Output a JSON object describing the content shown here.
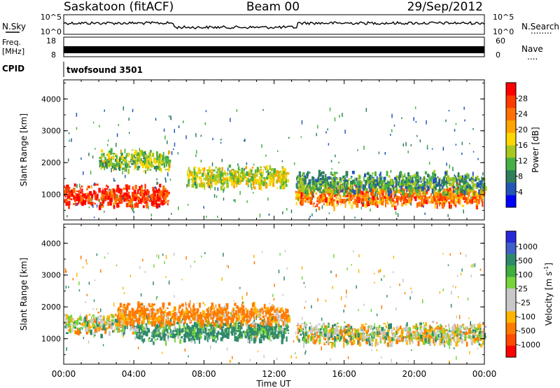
{
  "header": {
    "station": "Saskatoon (fitACF)",
    "beam": "Beam 00",
    "date": "29/Sep/2012"
  },
  "noise_panel": {
    "left_label": "N.Sky",
    "right_label": "N.Search",
    "left_ticks": [
      "10^5",
      "10^0"
    ],
    "right_ticks": [
      "10^5",
      "10^0"
    ],
    "right_legend_dots": "........"
  },
  "freq_panel": {
    "left_label_line1": "Freq.",
    "left_label_line2": "[MHz]",
    "left_ticks": [
      "18",
      "8"
    ],
    "right_label": "Nave",
    "right_ticks": [
      "60",
      "0"
    ],
    "right_legend_dots": "...."
  },
  "cpid_panel": {
    "label": "CPID",
    "program": "twofsound 3501"
  },
  "power_colorbar": {
    "title": "Power [dB]",
    "ticks": [
      "28",
      "24",
      "20",
      "16",
      "12",
      "8",
      "4"
    ],
    "colors": [
      "#0000ff",
      "#2456b8",
      "#2f7f5a",
      "#46b043",
      "#a8c81e",
      "#ffd700",
      "#ffa500",
      "#ff7000",
      "#ff3a00",
      "#ff0000"
    ]
  },
  "velocity_colorbar": {
    "title": "Velocity [m s",
    "title_sup": "-1",
    "title_end": "]",
    "ticks": [
      "1000",
      "500",
      "100",
      "25",
      "-25",
      "-100",
      "-500",
      "-1000"
    ],
    "colors": [
      "#2828d8",
      "#3f60c8",
      "#2f8a6a",
      "#3fae3f",
      "#77d43a",
      "#c8c8c8",
      "#c8c8c8",
      "#ffb400",
      "#ff7a00",
      "#ff4a00",
      "#ff0000"
    ]
  },
  "axes": {
    "ylabel": "Slant Range [km]",
    "xlabel": "Time UT",
    "xticks": [
      "00:00",
      "04:00",
      "08:00",
      "12:00",
      "16:00",
      "20:00",
      "00:00"
    ],
    "yticks": [
      "1000",
      "2000",
      "3000",
      "4000"
    ]
  },
  "chart_data": [
    {
      "type": "heatmap",
      "panel": "power",
      "x": [
        "00:00",
        "04:00",
        "08:00",
        "12:00",
        "16:00",
        "20:00",
        "00:00"
      ],
      "y_ticks": [
        1000,
        2000,
        3000,
        4000
      ],
      "ylim": [
        200,
        4600
      ],
      "zlim": [
        0,
        32
      ],
      "xlabel": "Time UT",
      "ylabel": "Slant Range [km]",
      "colorbar": "Power [dB]",
      "features": [
        {
          "t_start": 0.0,
          "t_end": 6.0,
          "range_center": 1000,
          "value": 28
        },
        {
          "t_start": 2.0,
          "t_end": 6.0,
          "range_center": 2100,
          "value": 14
        },
        {
          "t_start": 7.0,
          "t_end": 12.8,
          "range_center": 1600,
          "value": 16
        },
        {
          "t_start": 13.2,
          "t_end": 24.0,
          "range_center": 1000,
          "value": 24
        },
        {
          "t_start": 13.2,
          "t_end": 24.0,
          "range_center": 1400,
          "value": 10
        }
      ]
    },
    {
      "type": "heatmap",
      "panel": "velocity",
      "x": [
        "00:00",
        "04:00",
        "08:00",
        "12:00",
        "16:00",
        "20:00",
        "00:00"
      ],
      "y_ticks": [
        1000,
        2000,
        3000,
        4000
      ],
      "ylim": [
        200,
        4600
      ],
      "zlim": [
        -1000,
        1000
      ],
      "xlabel": "Time UT",
      "ylabel": "Slant Range [km]",
      "colorbar": "Velocity [m s-1]",
      "features": [
        {
          "t_start": 0.0,
          "t_end": 4.0,
          "range_center": 1500,
          "value": 0
        },
        {
          "t_start": 4.0,
          "t_end": 12.8,
          "range_center": 1300,
          "value": 100
        },
        {
          "t_start": 3.0,
          "t_end": 12.8,
          "range_center": 1800,
          "value": -100
        },
        {
          "t_start": 13.2,
          "t_end": 24.0,
          "range_center": 1200,
          "value": 0
        }
      ]
    }
  ]
}
